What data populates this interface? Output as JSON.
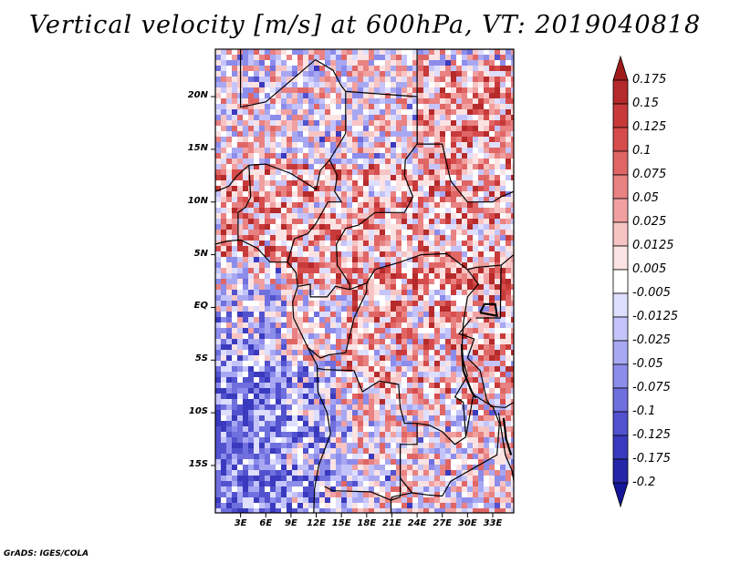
{
  "title": "Vertical velocity [m/s] at 600hPa, VT: 2019040818",
  "credit": "GrADS: IGES/COLA",
  "axes": {
    "lon_range": [
      0,
      35.5
    ],
    "lat_range": [
      -19.5,
      24.5
    ],
    "lat_ticks": [
      {
        "value": 20,
        "label": "20N"
      },
      {
        "value": 15,
        "label": "15N"
      },
      {
        "value": 10,
        "label": "10N"
      },
      {
        "value": 5,
        "label": "5N"
      },
      {
        "value": 0,
        "label": "EQ"
      },
      {
        "value": -5,
        "label": "5S"
      },
      {
        "value": -10,
        "label": "10S"
      },
      {
        "value": -15,
        "label": "15S"
      }
    ],
    "lon_ticks": [
      {
        "value": 3,
        "label": "3E"
      },
      {
        "value": 6,
        "label": "6E"
      },
      {
        "value": 9,
        "label": "9E"
      },
      {
        "value": 12,
        "label": "12E"
      },
      {
        "value": 15,
        "label": "15E"
      },
      {
        "value": 18,
        "label": "18E"
      },
      {
        "value": 21,
        "label": "21E"
      },
      {
        "value": 24,
        "label": "24E"
      },
      {
        "value": 27,
        "label": "27E"
      },
      {
        "value": 30,
        "label": "30E"
      },
      {
        "value": 33,
        "label": "33E"
      }
    ]
  },
  "colorbar": {
    "levels": [
      "0.175",
      "0.15",
      "0.125",
      "0.1",
      "0.075",
      "0.05",
      "0.025",
      "0.0125",
      "0.005",
      "-0.005",
      "-0.0125",
      "-0.025",
      "-0.05",
      "-0.075",
      "-0.1",
      "-0.125",
      "-0.175",
      "-0.2"
    ],
    "colors": [
      "#a01c1c",
      "#b52a2a",
      "#c83a3a",
      "#d64c4c",
      "#e06666",
      "#e98282",
      "#f0a0a0",
      "#f7c4c4",
      "#fbe3e3",
      "#ffffff",
      "#dedeff",
      "#c4c4fa",
      "#a8a8f2",
      "#8c8ceb",
      "#6f6fde",
      "#5252cf",
      "#3a3abe",
      "#2626a8",
      "#151597"
    ]
  }
}
